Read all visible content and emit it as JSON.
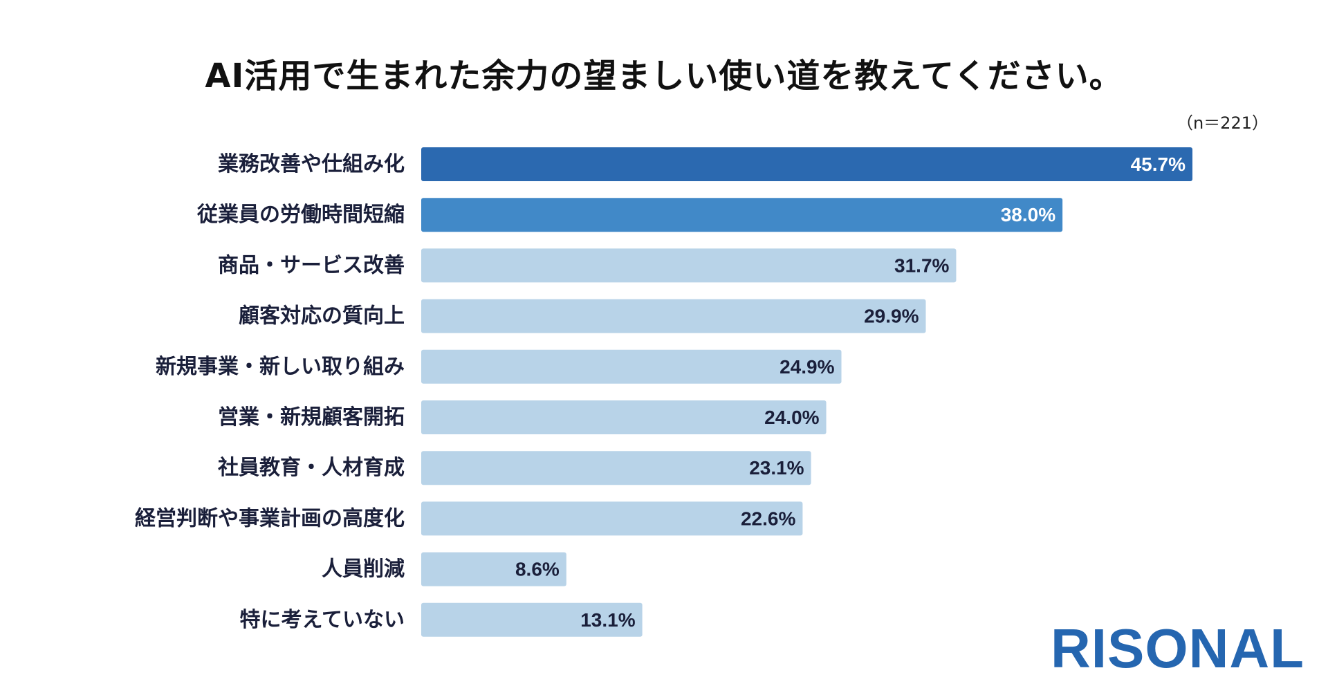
{
  "chart_data": {
    "type": "bar",
    "orientation": "horizontal",
    "title": "AI活用で生まれた余力の望ましい使い道を教えてください。",
    "sample_note": "（n＝221）",
    "categories": [
      "業務改善や仕組み化",
      "従業員の労働時間短縮",
      "商品・サービス改善",
      "顧客対応の質向上",
      "新規事業・新しい取り組み",
      "営業・新規顧客開拓",
      "社員教育・人材育成",
      "経営判断や事業計画の高度化",
      "人員削減",
      "特に考えていない"
    ],
    "values": [
      45.7,
      38.0,
      31.7,
      29.9,
      24.9,
      24.0,
      23.1,
      22.6,
      8.6,
      13.1
    ],
    "value_labels": [
      "45.7%",
      "38.0%",
      "31.7%",
      "29.9%",
      "24.9%",
      "24.0%",
      "23.1%",
      "22.6%",
      "8.6%",
      "13.1%"
    ],
    "bar_colors": [
      "#2b69b0",
      "#4189c8",
      "#b8d3e8",
      "#b8d3e8",
      "#b8d3e8",
      "#b8d3e8",
      "#b8d3e8",
      "#b8d3e8",
      "#b8d3e8",
      "#b8d3e8"
    ],
    "label_colors": [
      "#ffffff",
      "#ffffff",
      "#1a1f3a",
      "#1a1f3a",
      "#1a1f3a",
      "#1a1f3a",
      "#1a1f3a",
      "#1a1f3a",
      "#1a1f3a",
      "#1a1f3a"
    ],
    "xlim": [
      0,
      45.7
    ],
    "grid": false,
    "legend": "none"
  },
  "brand": {
    "logo_text": "RISONAL",
    "color": "#2566b0"
  }
}
